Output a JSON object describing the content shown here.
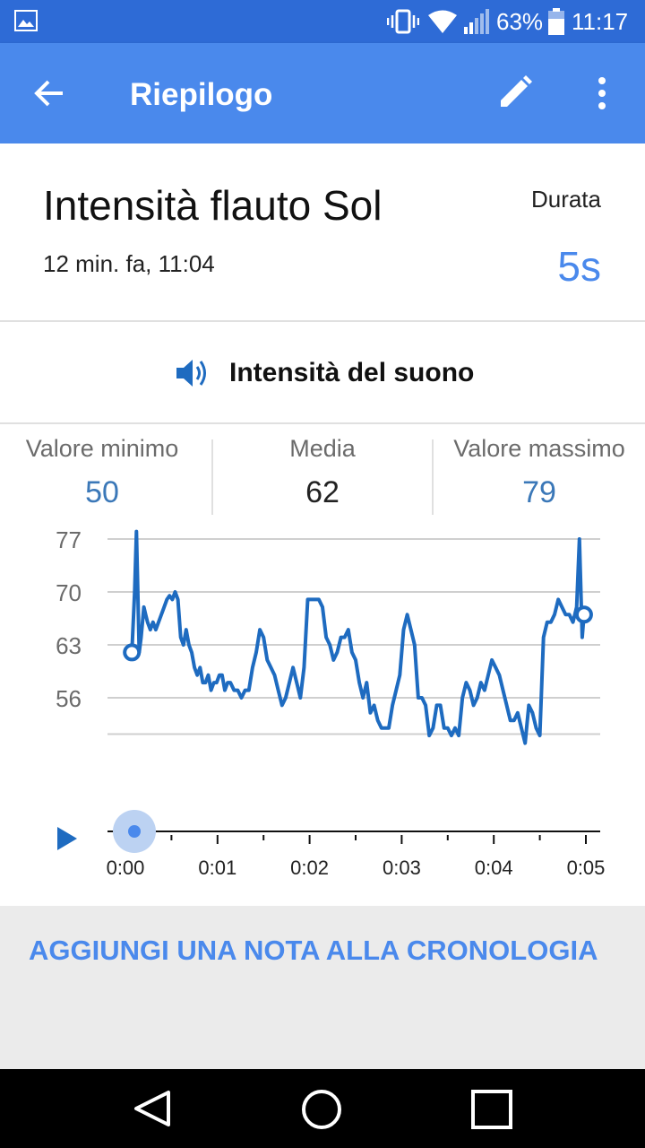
{
  "status_bar": {
    "battery_percent": "63%",
    "time": "11:17",
    "icons": [
      "gallery-icon",
      "vibrate-icon",
      "wifi-icon",
      "signal-icon",
      "battery-icon"
    ]
  },
  "app_bar": {
    "title": "Riepilogo",
    "back_icon": "arrow-back-icon",
    "edit_icon": "pencil-icon",
    "more_icon": "more-vert-icon"
  },
  "run": {
    "title": "Intensità flauto Sol",
    "timestamp": "12 min. fa, 11:04",
    "duration_label": "Durata",
    "duration_value": "5s"
  },
  "sensor": {
    "icon": "speaker-icon",
    "label": "Intensità del suono"
  },
  "stats": {
    "min_label": "Valore minimo",
    "min_value": "50",
    "avg_label": "Media",
    "avg_value": "62",
    "max_label": "Valore massimo",
    "max_value": "79"
  },
  "playback": {
    "play_icon": "play-icon",
    "position": 0
  },
  "chart_data": {
    "type": "line",
    "xlabel": "",
    "ylabel": "",
    "xlim": [
      0,
      5
    ],
    "ylim": [
      50,
      78
    ],
    "y_ticks": [
      77,
      70,
      63,
      56
    ],
    "x_ticks": [
      "0:00",
      "0:01",
      "0:02",
      "0:03",
      "0:04",
      "0:05"
    ],
    "grid": true,
    "series": [
      {
        "color": "#1e6bc0",
        "x": [
          0.07,
          0.1,
          0.12,
          0.15,
          0.17,
          0.2,
          0.22,
          0.24,
          0.27,
          0.3,
          0.33,
          0.36,
          0.39,
          0.42,
          0.45,
          0.48,
          0.51,
          0.54,
          0.57,
          0.6,
          0.63,
          0.66,
          0.69,
          0.72,
          0.75,
          0.78,
          0.81,
          0.84,
          0.87,
          0.9,
          0.93,
          0.96,
          0.99,
          1.02,
          1.05,
          1.08,
          1.11,
          1.14,
          1.18,
          1.22,
          1.26,
          1.3,
          1.34,
          1.38,
          1.42,
          1.46,
          1.5,
          1.54,
          1.58,
          1.62,
          1.66,
          1.7,
          1.74,
          1.78,
          1.82,
          1.86,
          1.9,
          1.94,
          1.98,
          2.02,
          2.06,
          2.1,
          2.14,
          2.18,
          2.22,
          2.26,
          2.3,
          2.34,
          2.38,
          2.42,
          2.46,
          2.5,
          2.54,
          2.58,
          2.62,
          2.66,
          2.7,
          2.74,
          2.78,
          2.82,
          2.86,
          2.9,
          2.94,
          2.98,
          3.02,
          3.06,
          3.1,
          3.14,
          3.18,
          3.22,
          3.26,
          3.3,
          3.34,
          3.38,
          3.42,
          3.46,
          3.5,
          3.54,
          3.58,
          3.62,
          3.66,
          3.7,
          3.74,
          3.78,
          3.82,
          3.86,
          3.9,
          3.94,
          3.98,
          4.02,
          4.06,
          4.1,
          4.14,
          4.18,
          4.22,
          4.26,
          4.3,
          4.34,
          4.38,
          4.42,
          4.46,
          4.5,
          4.54,
          4.58,
          4.62,
          4.66,
          4.7,
          4.74,
          4.78,
          4.82,
          4.86,
          4.9,
          4.93,
          4.96,
          4.98
        ],
        "values": [
          62,
          70,
          78,
          62,
          64,
          68,
          67,
          66,
          65,
          66,
          65,
          66,
          67,
          68,
          69,
          69.5,
          69,
          70,
          69,
          64,
          63,
          65,
          63,
          62,
          60,
          59,
          60,
          58,
          58,
          59,
          57,
          58,
          58,
          59,
          59,
          57,
          58,
          58,
          57,
          57,
          56,
          57,
          57,
          60,
          62,
          65,
          64,
          61,
          60,
          59,
          57,
          55,
          56,
          58,
          60,
          58,
          56,
          60,
          69,
          69,
          69,
          69,
          68,
          64,
          63,
          61,
          62,
          64,
          64,
          65,
          62,
          61,
          58,
          56,
          58,
          54,
          55,
          53,
          52,
          52,
          52,
          55,
          57,
          59,
          65,
          67,
          65,
          63,
          56,
          56,
          55,
          51,
          52,
          55,
          55,
          52,
          52,
          51,
          52,
          51,
          56,
          58,
          57,
          55,
          56,
          58,
          57,
          59,
          61,
          60,
          59,
          57,
          55,
          53,
          53,
          54,
          52,
          50,
          55,
          54,
          52,
          51,
          64,
          66,
          66,
          67,
          69,
          68,
          67,
          67,
          66,
          68,
          77,
          64,
          67
        ]
      }
    ],
    "endpoints": [
      {
        "x": 0.07,
        "y": 62
      },
      {
        "x": 4.98,
        "y": 67
      }
    ]
  },
  "footer": {
    "add_note_label": "AGGIUNGI UNA NOTA ALLA CRONOLOGIA"
  },
  "nav_bar": {
    "icons": [
      "nav-back-icon",
      "nav-home-icon",
      "nav-recent-icon"
    ]
  }
}
